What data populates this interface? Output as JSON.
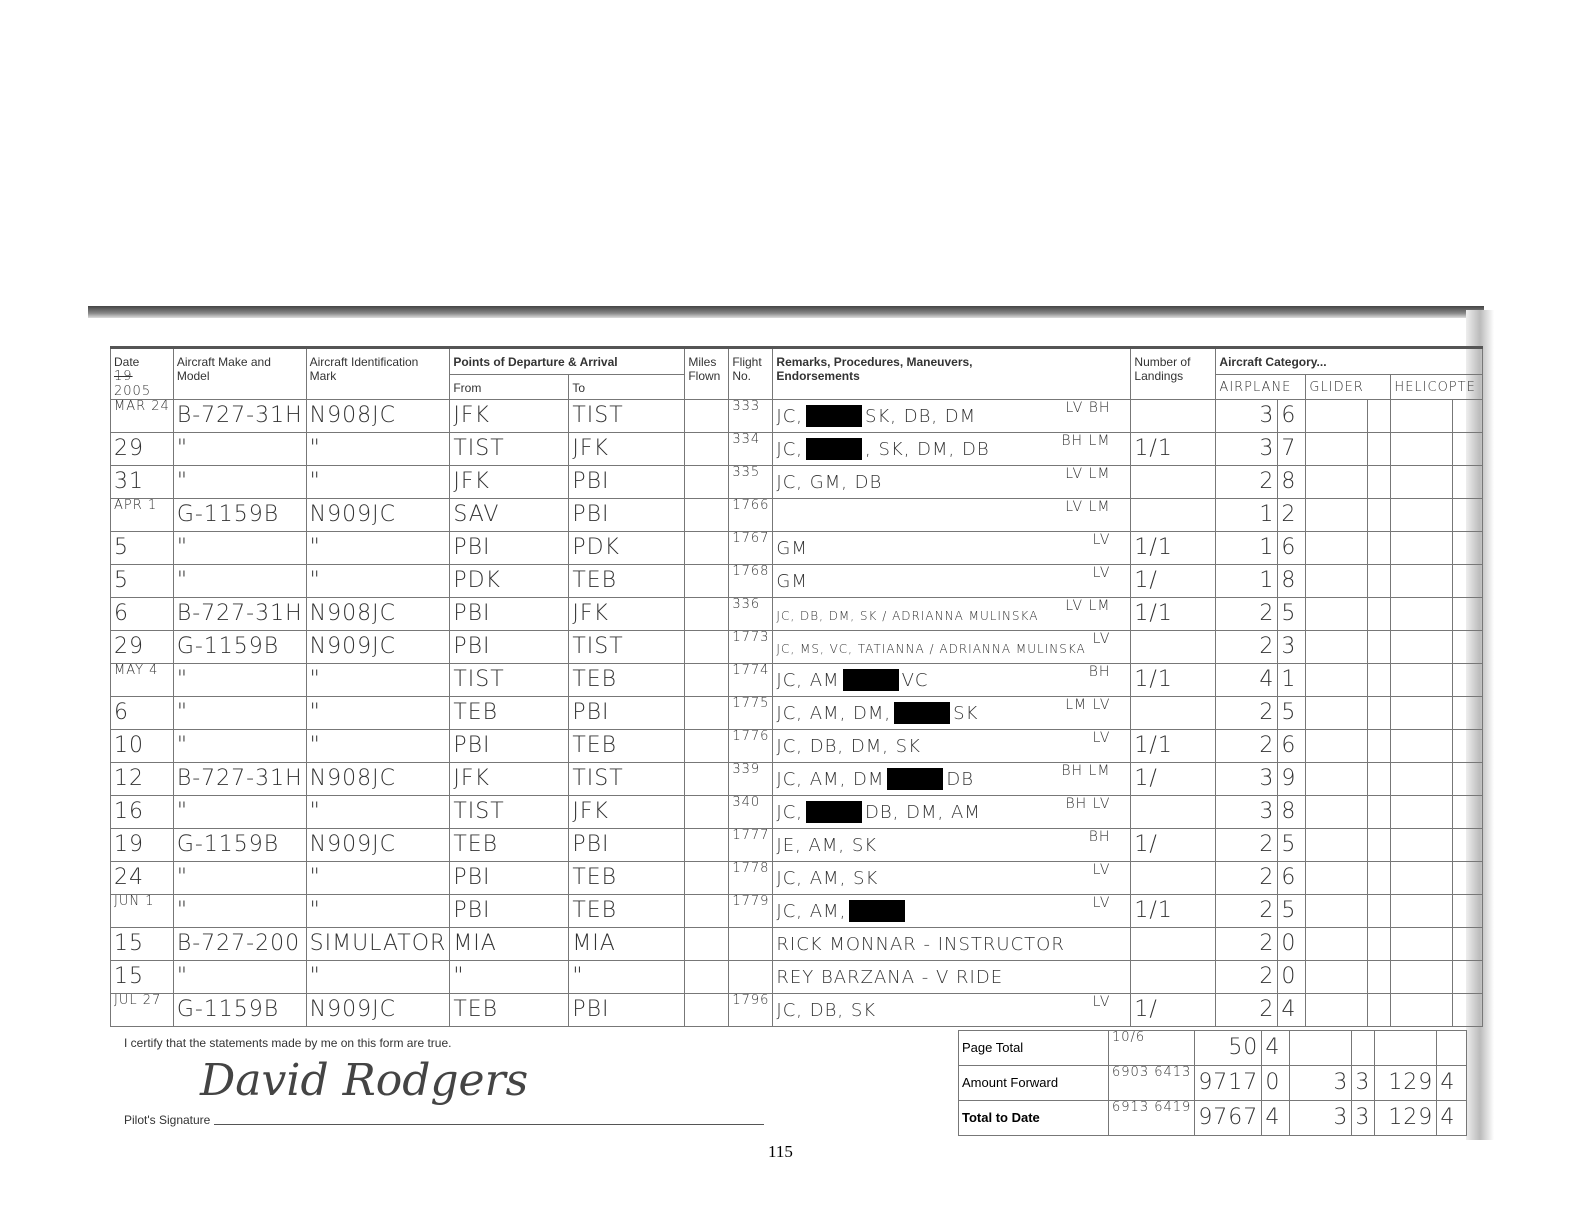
{
  "headers": {
    "date": "Date",
    "year_struck": "19",
    "year": "2005",
    "make": "Aircraft Make and Model",
    "ident": "Aircraft Identification Mark",
    "points": "Points of Departure & Arrival",
    "from": "From",
    "to": "To",
    "miles": "Miles Flown",
    "flight": "Flight No.",
    "remarks": "Remarks, Procedures, Maneuvers, Endorsements",
    "landings": "Number of Landings",
    "category": "Aircraft Category...",
    "airplane": "AIRPLANE",
    "glider": "GLIDER",
    "helicopter": "HELICOPTE"
  },
  "rows": [
    {
      "date": "MAR 24",
      "make": "B-727-31H",
      "ident": "N908JC",
      "from": "JFK",
      "to": "TIST",
      "flight": "333",
      "remarks_pre": "JC,",
      "redacted": true,
      "remarks_post": "SK, DB, DM",
      "code": "LV BH",
      "landings": "",
      "hrs": "3",
      "tenths": "6"
    },
    {
      "date": "29",
      "make": "\"",
      "ident": "\"",
      "from": "TIST",
      "to": "JFK",
      "flight": "334",
      "remarks_pre": "JC,",
      "redacted": true,
      "remarks_post": ", SK, DM, DB",
      "code": "BH LM",
      "landings": "1/1",
      "hrs": "3",
      "tenths": "7"
    },
    {
      "date": "31",
      "make": "\"",
      "ident": "\"",
      "from": "JFK",
      "to": "PBI",
      "flight": "335",
      "remarks_pre": "JC, GM, DB",
      "redacted": false,
      "remarks_post": "",
      "code": "LV LM",
      "landings": "",
      "hrs": "2",
      "tenths": "8"
    },
    {
      "date": "APR 1",
      "make": "G-1159B",
      "ident": "N909JC",
      "from": "SAV",
      "to": "PBI",
      "flight": "1766",
      "remarks_pre": "",
      "redacted": false,
      "remarks_post": "",
      "code": "LV LM",
      "landings": "",
      "hrs": "1",
      "tenths": "2"
    },
    {
      "date": "5",
      "make": "\"",
      "ident": "\"",
      "from": "PBI",
      "to": "PDK",
      "flight": "1767",
      "remarks_pre": "GM",
      "redacted": false,
      "remarks_post": "",
      "code": "LV",
      "landings": "1/1",
      "hrs": "1",
      "tenths": "6"
    },
    {
      "date": "5",
      "make": "\"",
      "ident": "\"",
      "from": "PDK",
      "to": "TEB",
      "flight": "1768",
      "remarks_pre": "GM",
      "redacted": false,
      "remarks_post": "",
      "code": "LV",
      "landings": "1/",
      "hrs": "1",
      "tenths": "8"
    },
    {
      "date": "6",
      "make": "B-727-31H",
      "ident": "N908JC",
      "from": "PBI",
      "to": "JFK",
      "flight": "336",
      "remarks_pre": "JC, DB, DM, SK / ADRIANNA MULINSKA",
      "redacted": false,
      "remarks_post": "",
      "code": "LV LM",
      "landings": "1/1",
      "hrs": "2",
      "tenths": "5"
    },
    {
      "date": "29",
      "make": "G-1159B",
      "ident": "N909JC",
      "from": "PBI",
      "to": "TIST",
      "flight": "1773",
      "remarks_pre": "JC, MS, VC, TATIANNA / ADRIANNA MULINSKA",
      "redacted": false,
      "remarks_post": "",
      "code": "LV",
      "landings": "",
      "hrs": "2",
      "tenths": "3"
    },
    {
      "date": "MAY 4",
      "make": "\"",
      "ident": "\"",
      "from": "TIST",
      "to": "TEB",
      "flight": "1774",
      "remarks_pre": "JC, AM",
      "redacted": true,
      "remarks_post": "VC",
      "code": "BH",
      "landings": "1/1",
      "hrs": "4",
      "tenths": "1"
    },
    {
      "date": "6",
      "make": "\"",
      "ident": "\"",
      "from": "TEB",
      "to": "PBI",
      "flight": "1775",
      "remarks_pre": "JC, AM, DM,",
      "redacted": true,
      "remarks_post": "SK",
      "code": "LM LV",
      "landings": "",
      "hrs": "2",
      "tenths": "5"
    },
    {
      "date": "10",
      "make": "\"",
      "ident": "\"",
      "from": "PBI",
      "to": "TEB",
      "flight": "1776",
      "remarks_pre": "JC, DB, DM, SK",
      "redacted": false,
      "remarks_post": "",
      "code": "LV",
      "landings": "1/1",
      "hrs": "2",
      "tenths": "6"
    },
    {
      "date": "12",
      "make": "B-727-31H",
      "ident": "N908JC",
      "from": "JFK",
      "to": "TIST",
      "flight": "339",
      "remarks_pre": "JC, AM, DM",
      "redacted": true,
      "remarks_post": "DB",
      "code": "BH LM",
      "landings": "1/",
      "hrs": "3",
      "tenths": "9"
    },
    {
      "date": "16",
      "make": "\"",
      "ident": "\"",
      "from": "TIST",
      "to": "JFK",
      "flight": "340",
      "remarks_pre": "JC,",
      "redacted": true,
      "remarks_post": "DB, DM, AM",
      "code": "BH LV",
      "landings": "",
      "hrs": "3",
      "tenths": "8"
    },
    {
      "date": "19",
      "make": "G-1159B",
      "ident": "N909JC",
      "from": "TEB",
      "to": "PBI",
      "flight": "1777",
      "remarks_pre": "JE, AM, SK",
      "redacted": false,
      "remarks_post": "",
      "code": "BH",
      "landings": "1/",
      "hrs": "2",
      "tenths": "5"
    },
    {
      "date": "24",
      "make": "\"",
      "ident": "\"",
      "from": "PBI",
      "to": "TEB",
      "flight": "1778",
      "remarks_pre": "JC, AM, SK",
      "redacted": false,
      "remarks_post": "",
      "code": "LV",
      "landings": "",
      "hrs": "2",
      "tenths": "6"
    },
    {
      "date": "JUN 1",
      "make": "\"",
      "ident": "\"",
      "from": "PBI",
      "to": "TEB",
      "flight": "1779",
      "remarks_pre": "JC, AM,",
      "redacted": true,
      "remarks_post": "",
      "code": "LV",
      "landings": "1/1",
      "hrs": "2",
      "tenths": "5"
    },
    {
      "date": "15",
      "make": "B-727-200",
      "ident": "SIMULATOR",
      "from": "MIA",
      "to": "MIA",
      "flight": "",
      "remarks_pre": "RICK MONNAR - INSTRUCTOR",
      "redacted": false,
      "remarks_post": "",
      "code": "",
      "landings": "",
      "hrs": "2",
      "tenths": "0"
    },
    {
      "date": "15",
      "make": "\"",
      "ident": "\"",
      "from": "\"",
      "to": "\"",
      "flight": "",
      "remarks_pre": "REY BARZANA - V RIDE",
      "redacted": false,
      "remarks_post": "",
      "code": "",
      "landings": "",
      "hrs": "2",
      "tenths": "0"
    },
    {
      "date": "JUL 27",
      "make": "G-1159B",
      "ident": "N909JC",
      "from": "TEB",
      "to": "PBI",
      "flight": "1796",
      "remarks_pre": "JC, DB, SK",
      "redacted": false,
      "remarks_post": "",
      "code": "LV",
      "landings": "1/",
      "hrs": "2",
      "tenths": "4"
    }
  ],
  "footer": {
    "certify": "I certify that the statements made by me on this form are true.",
    "signature_label": "Pilot's Signature",
    "signature": "David Rodgers",
    "page_number": "115"
  },
  "totals": [
    {
      "label": "Page Total",
      "landings": "10/6",
      "hrs": "50",
      "tenths": "4",
      "c1": "",
      "c2": "",
      "c3": "",
      "c4": ""
    },
    {
      "label": "Amount Forward",
      "landings": "6903 6413",
      "hrs": "9717",
      "tenths": "0",
      "c1": "3",
      "c2": "3",
      "c3": "129",
      "c4": "4"
    },
    {
      "label": "Total to Date",
      "landings": "6913 6419",
      "hrs": "9767",
      "tenths": "4",
      "c1": "3",
      "c2": "3",
      "c3": "129",
      "c4": "4"
    }
  ]
}
